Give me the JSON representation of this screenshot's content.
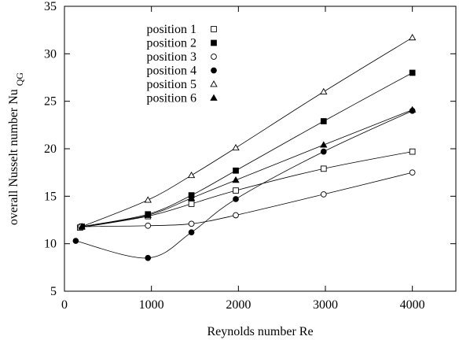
{
  "chart_data": {
    "type": "line",
    "xlabel": "Reynolds number Re",
    "ylabel": "overall Nusselt number Nu",
    "ylabel_sub": "QG",
    "xlim": [
      0,
      4500
    ],
    "ylim": [
      5,
      35
    ],
    "xticks": [
      0,
      1000,
      2000,
      3000,
      4000
    ],
    "yticks": [
      5,
      10,
      15,
      20,
      25,
      30,
      35
    ],
    "grid": false,
    "legend_position": "top-left",
    "series": [
      {
        "name": "position 1",
        "marker": "square-open",
        "x": [
          180,
          960,
          1460,
          1970,
          2980,
          4000
        ],
        "y": [
          11.7,
          12.9,
          14.2,
          15.6,
          17.9,
          19.7
        ]
      },
      {
        "name": "position 2",
        "marker": "square-filled",
        "x": [
          200,
          960,
          1460,
          1970,
          2980,
          4000
        ],
        "y": [
          11.8,
          13.1,
          15.1,
          17.7,
          22.9,
          28.0
        ]
      },
      {
        "name": "position 3",
        "marker": "circle-open",
        "x": [
          190,
          960,
          1460,
          1970,
          2980,
          4000
        ],
        "y": [
          11.8,
          11.9,
          12.1,
          13.0,
          15.2,
          17.5
        ]
      },
      {
        "name": "position 4",
        "marker": "circle-filled",
        "x": [
          130,
          960,
          1460,
          1970,
          2980,
          4000
        ],
        "y": [
          10.3,
          8.5,
          11.2,
          14.7,
          19.7,
          24.0
        ]
      },
      {
        "name": "position 5",
        "marker": "triangle-open",
        "x": [
          200,
          960,
          1460,
          1970,
          2980,
          4000
        ],
        "y": [
          11.8,
          14.6,
          17.2,
          20.1,
          26.0,
          31.7
        ]
      },
      {
        "name": "position 6",
        "marker": "triangle-filled",
        "x": [
          200,
          960,
          1460,
          1970,
          2980,
          4000
        ],
        "y": [
          11.8,
          13.0,
          14.8,
          16.7,
          20.4,
          24.1
        ]
      }
    ]
  }
}
